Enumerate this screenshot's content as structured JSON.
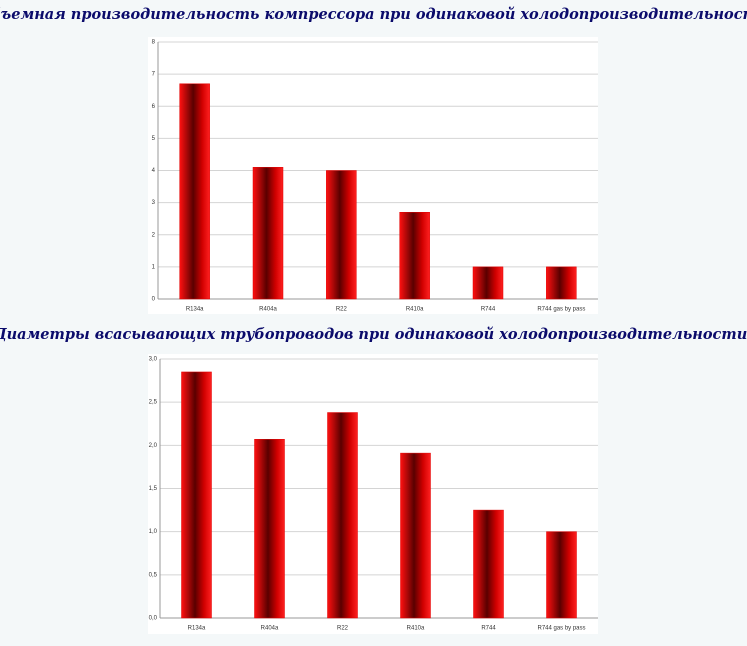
{
  "chart_data": [
    {
      "type": "bar",
      "title": "Объемная производительность компрессора при одинаковой холодопроизводительности",
      "categories": [
        "R134a",
        "R404a",
        "R22",
        "R410a",
        "R744",
        "R744 gas by pass"
      ],
      "values": [
        6.7,
        4.1,
        4.0,
        2.7,
        1.0,
        1.0
      ],
      "color": "#e00000",
      "ylim": [
        0,
        8
      ],
      "yticks": [
        0,
        1,
        2,
        3,
        4,
        5,
        6,
        7,
        8
      ],
      "grid": true
    },
    {
      "type": "bar",
      "title": "Диаметры всасывающих трубопроводов при одинаковой холодопроизводительности.",
      "categories": [
        "R134a",
        "R404a",
        "R22",
        "R410a",
        "R744",
        "R744 gas by pass"
      ],
      "values": [
        2.85,
        2.07,
        2.38,
        1.91,
        1.25,
        1.0
      ],
      "color": "#e00000",
      "ylim": [
        0,
        3
      ],
      "yticks": [
        {
          "value": 0,
          "label": "0,0"
        },
        {
          "value": 0.5,
          "label": "0,5"
        },
        {
          "value": 1,
          "label": "1,0"
        },
        {
          "value": 1.5,
          "label": "1,5"
        },
        {
          "value": 2,
          "label": "2,0"
        },
        {
          "value": 2.5,
          "label": "2,5"
        },
        {
          "value": 3,
          "label": "3,0"
        }
      ],
      "grid": true
    }
  ]
}
